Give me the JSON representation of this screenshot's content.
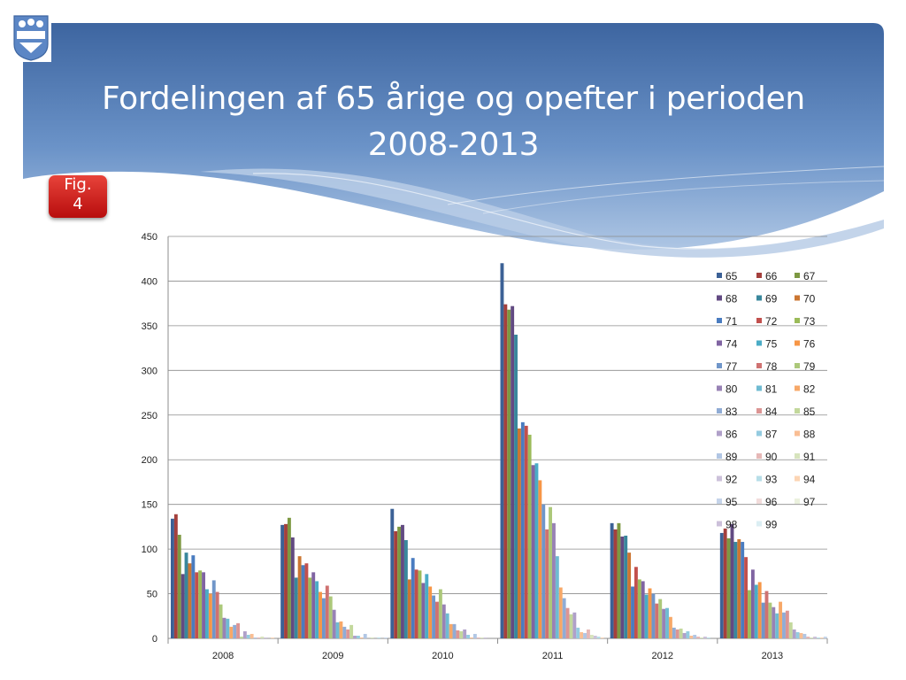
{
  "title_lines": [
    "Fordelingen af 65 årige og opefter i perioden",
    "2008-2013"
  ],
  "fig_badge": [
    "Fig.",
    "4"
  ],
  "chart_data": {
    "type": "bar",
    "categories": [
      "2008",
      "2009",
      "2010",
      "2011",
      "2012",
      "2013"
    ],
    "ylim": [
      0,
      450
    ],
    "yticks": [
      0,
      50,
      100,
      150,
      200,
      250,
      300,
      350,
      400,
      450
    ],
    "grid": true,
    "legend_position": "right",
    "series": [
      {
        "name": "65",
        "color": "#3c6196",
        "values": [
          134,
          127,
          145,
          420,
          129,
          118
        ]
      },
      {
        "name": "66",
        "color": "#a4403d",
        "values": [
          139,
          128,
          120,
          374,
          122,
          123
        ]
      },
      {
        "name": "67",
        "color": "#7d9842",
        "values": [
          116,
          135,
          125,
          368,
          129,
          112
        ]
      },
      {
        "name": "68",
        "color": "#624a82",
        "values": [
          72,
          113,
          127,
          372,
          114,
          128
        ]
      },
      {
        "name": "69",
        "color": "#39879c",
        "values": [
          96,
          68,
          110,
          340,
          115,
          108
        ]
      },
      {
        "name": "70",
        "color": "#cb7632",
        "values": [
          84,
          92,
          66,
          235,
          96,
          111
        ]
      },
      {
        "name": "71",
        "color": "#4a7cc0",
        "values": [
          93,
          82,
          90,
          242,
          58,
          108
        ]
      },
      {
        "name": "72",
        "color": "#c2504d",
        "values": [
          74,
          84,
          77,
          238,
          80,
          91
        ]
      },
      {
        "name": "73",
        "color": "#9bbb59",
        "values": [
          76,
          68,
          76,
          228,
          66,
          54
        ]
      },
      {
        "name": "74",
        "color": "#8064a2",
        "values": [
          74,
          74,
          62,
          194,
          64,
          77
        ]
      },
      {
        "name": "75",
        "color": "#4bacc6",
        "values": [
          55,
          64,
          72,
          196,
          49,
          60
        ]
      },
      {
        "name": "76",
        "color": "#f79646",
        "values": [
          50,
          52,
          58,
          177,
          56,
          63
        ]
      },
      {
        "name": "77",
        "color": "#7096c9",
        "values": [
          65,
          45,
          48,
          150,
          50,
          40
        ]
      },
      {
        "name": "78",
        "color": "#cf7271",
        "values": [
          52,
          59,
          41,
          122,
          39,
          53
        ]
      },
      {
        "name": "79",
        "color": "#acc87a",
        "values": [
          38,
          47,
          55,
          147,
          44,
          40
        ]
      },
      {
        "name": "80",
        "color": "#9882b5",
        "values": [
          23,
          32,
          38,
          129,
          33,
          35
        ]
      },
      {
        "name": "81",
        "color": "#6fbbd2",
        "values": [
          22,
          18,
          28,
          92,
          34,
          28
        ]
      },
      {
        "name": "82",
        "color": "#f7a868",
        "values": [
          13,
          19,
          16,
          57,
          24,
          41
        ]
      },
      {
        "name": "83",
        "color": "#90acd5",
        "values": [
          15,
          13,
          16,
          45,
          12,
          29
        ]
      },
      {
        "name": "84",
        "color": "#dc9594",
        "values": [
          17,
          10,
          9,
          34,
          10,
          31
        ]
      },
      {
        "name": "85",
        "color": "#c3d89c",
        "values": [
          2,
          15,
          8,
          27,
          11,
          18
        ]
      },
      {
        "name": "86",
        "color": "#b0a0c9",
        "values": [
          8,
          3,
          10,
          29,
          6,
          10
        ]
      },
      {
        "name": "87",
        "color": "#94cbe0",
        "values": [
          4,
          3,
          4,
          12,
          8,
          7
        ]
      },
      {
        "name": "88",
        "color": "#f9be94",
        "values": [
          5,
          1,
          1,
          7,
          3,
          6
        ]
      },
      {
        "name": "89",
        "color": "#b1c6e4",
        "values": [
          1,
          5,
          5,
          6,
          4,
          5
        ]
      },
      {
        "name": "90",
        "color": "#e6b8b7",
        "values": [
          1,
          0,
          1,
          10,
          2,
          2
        ]
      },
      {
        "name": "91",
        "color": "#d7e4bd",
        "values": [
          2,
          1,
          1,
          4,
          1,
          1
        ]
      },
      {
        "name": "92",
        "color": "#ccc1da",
        "values": [
          1,
          0,
          1,
          3,
          2,
          2
        ]
      },
      {
        "name": "93",
        "color": "#b7dee8",
        "values": [
          0,
          1,
          0,
          2,
          1,
          1
        ]
      },
      {
        "name": "94",
        "color": "#fcd5b4",
        "values": [
          1,
          0,
          0,
          1,
          0,
          1
        ]
      },
      {
        "name": "95",
        "color": "#c5d4ea",
        "values": [
          0,
          1,
          0,
          0,
          0,
          2
        ]
      },
      {
        "name": "96",
        "color": "#f2dcdb",
        "values": [
          0,
          0,
          0,
          0,
          0,
          0
        ]
      },
      {
        "name": "97",
        "color": "#ebf1de",
        "values": [
          0,
          0,
          0,
          0,
          0,
          0
        ]
      },
      {
        "name": "98",
        "color": "#ccc0da",
        "values": [
          0,
          0,
          0,
          2,
          0,
          0
        ]
      },
      {
        "name": "99",
        "color": "#dbeef3",
        "values": [
          0,
          0,
          0,
          0,
          0,
          0
        ]
      }
    ]
  }
}
